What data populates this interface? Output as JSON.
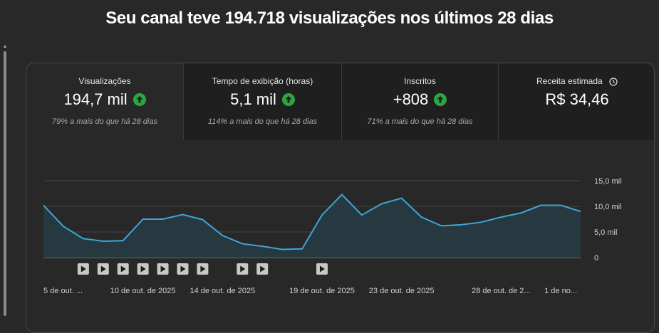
{
  "headline": "Seu canal teve 194.718 visualizações nos últimos 28 dias",
  "metrics": [
    {
      "label": "Visualizações",
      "value": "194,7 mil",
      "note": "79% a mais do que há 28 dias",
      "trend": "up"
    },
    {
      "label": "Tempo de exibição (horas)",
      "value": "5,1 mil",
      "note": "114% a mais do que há 28 dias",
      "trend": "up"
    },
    {
      "label": "Inscritos",
      "value": "+808",
      "note": "71% a mais do que há 28 dias",
      "trend": "up"
    },
    {
      "label": "Receita estimada",
      "value": "R$ 34,46",
      "note": "",
      "trend": ""
    }
  ],
  "colors": {
    "line": "#3ea6d6",
    "area": "#263a42",
    "up": "#2ba640",
    "grid": "#444444"
  },
  "icons": {
    "trend": "arrow-up-circle-icon",
    "info": "clock-icon",
    "video": "video-play-icon"
  },
  "chart_data": {
    "type": "area",
    "title": "",
    "xlabel": "",
    "ylabel": "",
    "ylim": [
      0,
      15000
    ],
    "ytick_labels": [
      "15,0 mil",
      "10,0 mil",
      "5,0 mil",
      "0"
    ],
    "yticks": [
      15000,
      10000,
      5000,
      0
    ],
    "x_tick_labels": [
      "5 de out. ...",
      "10 de out. de 2025",
      "14 de out. de 2025",
      "19 de out. de 2025",
      "23 de out. de 2025",
      "28 de out. de 2...",
      "1 de no..."
    ],
    "x_tick_indices": [
      1,
      5,
      9,
      14,
      18,
      23,
      26
    ],
    "series": [
      {
        "values": [
          10200,
          6100,
          3700,
          3200,
          3300,
          7500,
          7500,
          8400,
          7400,
          4300,
          2700,
          2200,
          1600,
          1700,
          8300,
          12300,
          8300,
          10500,
          11600,
          7900,
          6200,
          6400,
          6900,
          7900,
          8700,
          10200,
          10200,
          9000
        ]
      }
    ],
    "video_markers": [
      2,
      3,
      4,
      5,
      6,
      7,
      8,
      10,
      11,
      14
    ],
    "grid": true
  }
}
